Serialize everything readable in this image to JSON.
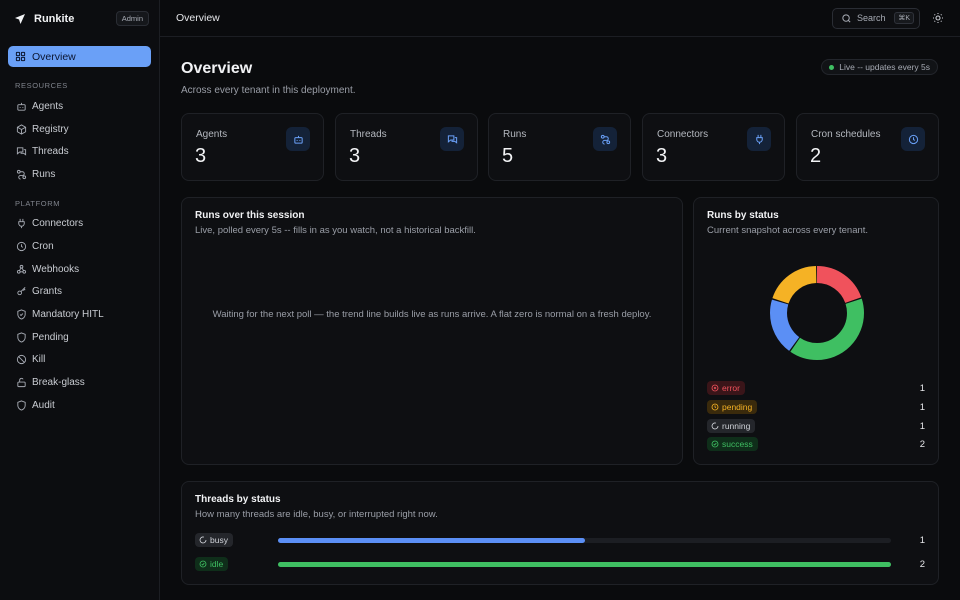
{
  "app": {
    "name": "Runkite",
    "role_badge": "Admin"
  },
  "sidebar": {
    "active": {
      "label": "Overview",
      "icon": "grid-icon"
    },
    "sections": [
      {
        "label": "RESOURCES",
        "items": [
          {
            "label": "Agents",
            "icon": "bot-icon"
          },
          {
            "label": "Registry",
            "icon": "package-icon"
          },
          {
            "label": "Threads",
            "icon": "messages-icon"
          },
          {
            "label": "Runs",
            "icon": "route-icon"
          }
        ]
      },
      {
        "label": "PLATFORM",
        "items": [
          {
            "label": "Connectors",
            "icon": "plug-icon"
          },
          {
            "label": "Cron",
            "icon": "clock-icon"
          },
          {
            "label": "Webhooks",
            "icon": "webhook-icon"
          },
          {
            "label": "Grants",
            "icon": "key-icon"
          },
          {
            "label": "Mandatory HITL",
            "icon": "shield-check-icon"
          },
          {
            "label": "Pending",
            "icon": "shield-icon"
          },
          {
            "label": "Kill",
            "icon": "ban-icon"
          },
          {
            "label": "Break-glass",
            "icon": "unlock-icon"
          },
          {
            "label": "Audit",
            "icon": "shield-icon"
          }
        ]
      }
    ]
  },
  "topbar": {
    "title": "Overview",
    "search_label": "Search",
    "search_shortcut": "⌘K"
  },
  "header": {
    "title": "Overview",
    "subtitle": "Across every tenant in this deployment.",
    "live_badge": "Live -- updates every 5s"
  },
  "stats": [
    {
      "label": "Agents",
      "value": "3",
      "icon": "bot-icon"
    },
    {
      "label": "Threads",
      "value": "3",
      "icon": "messages-icon"
    },
    {
      "label": "Runs",
      "value": "5",
      "icon": "route-icon"
    },
    {
      "label": "Connectors",
      "value": "3",
      "icon": "plug-icon"
    },
    {
      "label": "Cron schedules",
      "value": "2",
      "icon": "clock-icon"
    }
  ],
  "runs_session": {
    "title": "Runs over this session",
    "subtitle": "Live, polled every 5s -- fills in as you watch, not a historical backfill.",
    "empty_message": "Waiting for the next poll — the trend line builds live as runs arrive. A flat zero is normal on a fresh deploy."
  },
  "runs_by_status": {
    "title": "Runs by status",
    "subtitle": "Current snapshot across every tenant.",
    "items": [
      {
        "label": "error",
        "count": "1",
        "color": "#f0525c",
        "bg": "#3a1519",
        "icon": "x-circle-icon"
      },
      {
        "label": "pending",
        "count": "1",
        "color": "#f5b225",
        "bg": "#3a2a0c",
        "icon": "clock-icon"
      },
      {
        "label": "running",
        "count": "1",
        "color": "#d0d3d9",
        "bg": "#24262b",
        "icon": "loader-icon"
      },
      {
        "label": "success",
        "count": "2",
        "color": "#3fbf62",
        "bg": "#0f2e1a",
        "icon": "check-circle-icon"
      }
    ]
  },
  "chart_data": {
    "type": "pie",
    "categories": [
      "error",
      "pending",
      "running",
      "success"
    ],
    "values": [
      1,
      1,
      1,
      2
    ],
    "colors": [
      "#f0525c",
      "#f5b225",
      "#5b8ff5",
      "#3fbf62"
    ],
    "title": "Runs by status",
    "xlabel": "",
    "ylabel": ""
  },
  "threads_by_status": {
    "title": "Threads by status",
    "subtitle": "How many threads are idle, busy, or interrupted right now.",
    "max": 2,
    "items": [
      {
        "label": "busy",
        "count": "1",
        "value": 1,
        "color": "#5b8ff5",
        "text_color": "#d0d3d9",
        "bg": "#24262b",
        "icon": "loader-icon"
      },
      {
        "label": "idle",
        "count": "2",
        "value": 2,
        "color": "#3fbf62",
        "text_color": "#3fbf62",
        "bg": "#0f2e1a",
        "icon": "check-circle-icon"
      }
    ]
  }
}
